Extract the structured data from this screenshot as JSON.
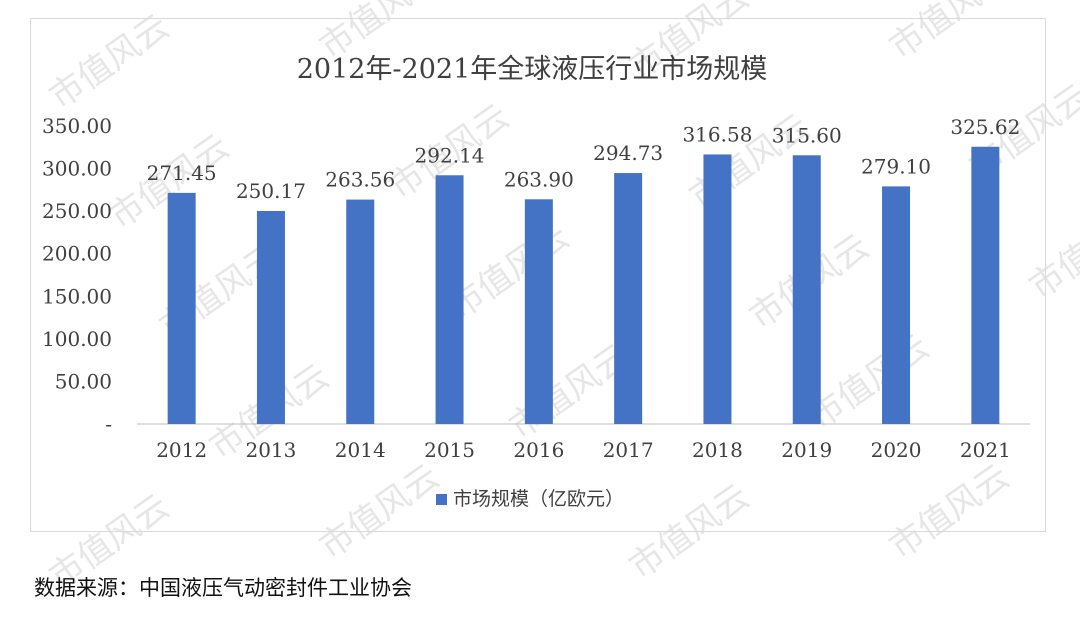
{
  "source": "数据来源：中国液压气动密封件工业协会",
  "watermark": "市值风云",
  "chart_data": {
    "type": "bar",
    "title": "2012年-2021年全球液压行业市场规模",
    "categories": [
      "2012",
      "2013",
      "2014",
      "2015",
      "2016",
      "2017",
      "2018",
      "2019",
      "2020",
      "2021"
    ],
    "series": [
      {
        "name": "市场规模（亿欧元）",
        "values": [
          271.45,
          250.17,
          263.56,
          292.14,
          263.9,
          294.73,
          316.58,
          315.6,
          279.1,
          325.62
        ],
        "labels": [
          "271.45",
          "250.17",
          "263.56",
          "292.14",
          "263.90",
          "294.73",
          "316.58",
          "315.60",
          "279.10",
          "325.62"
        ]
      }
    ],
    "y_ticks": [
      0,
      50,
      100,
      150,
      200,
      250,
      300,
      350
    ],
    "y_tick_labels": [
      "-",
      "50.00",
      "100.00",
      "150.00",
      "200.00",
      "250.00",
      "300.00",
      "350.00"
    ],
    "ylim": [
      0,
      350
    ],
    "grid": false,
    "legend": "bottom",
    "bar_color": "#4472c4"
  }
}
